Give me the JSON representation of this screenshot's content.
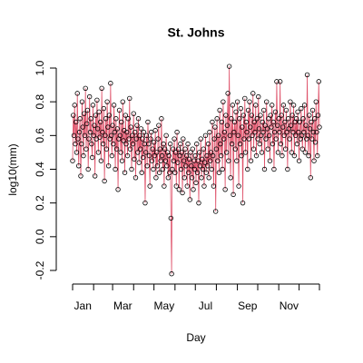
{
  "chart_data": {
    "type": "scatter-line",
    "title": "St. Johns",
    "x_label": "Day",
    "y_label": "log10(mm)",
    "point_color": "#000000",
    "line_color": "#df536b",
    "xlim": [
      1,
      365
    ],
    "ylim": [
      -0.2,
      1.0
    ],
    "xticks": [
      1,
      32,
      60,
      91,
      121,
      152,
      182,
      213,
      244,
      274,
      305,
      335,
      365
    ],
    "xlabels": [
      {
        "value": 16,
        "label": "Jan"
      },
      {
        "value": 75,
        "label": "Mar"
      },
      {
        "value": 136,
        "label": "May"
      },
      {
        "value": 197,
        "label": "Jul"
      },
      {
        "value": 259,
        "label": "Sep"
      },
      {
        "value": 320,
        "label": "Nov"
      }
    ],
    "yticks": [
      -0.2,
      {
        "value": 0,
        "label": "0.0"
      },
      0.2,
      0.4,
      0.6,
      0.8,
      {
        "value": 1,
        "label": "1.0"
      }
    ],
    "x": [
      1,
      2,
      3,
      4,
      5,
      6,
      7,
      8,
      9,
      10,
      11,
      12,
      13,
      14,
      15,
      16,
      17,
      18,
      19,
      20,
      21,
      22,
      23,
      24,
      25,
      26,
      27,
      28,
      29,
      30,
      31,
      32,
      33,
      34,
      35,
      36,
      37,
      38,
      39,
      40,
      41,
      42,
      43,
      44,
      45,
      46,
      47,
      48,
      49,
      50,
      51,
      52,
      53,
      54,
      55,
      56,
      57,
      58,
      59,
      60,
      61,
      62,
      63,
      64,
      65,
      66,
      67,
      68,
      69,
      70,
      71,
      72,
      73,
      74,
      75,
      76,
      77,
      78,
      79,
      80,
      81,
      82,
      83,
      84,
      85,
      86,
      87,
      88,
      89,
      90,
      91,
      92,
      93,
      94,
      95,
      96,
      97,
      98,
      99,
      100,
      101,
      102,
      103,
      104,
      105,
      106,
      107,
      108,
      109,
      110,
      111,
      112,
      113,
      114,
      115,
      116,
      117,
      118,
      119,
      120,
      121,
      122,
      123,
      124,
      125,
      126,
      127,
      128,
      129,
      130,
      131,
      132,
      133,
      134,
      135,
      136,
      137,
      138,
      139,
      140,
      141,
      142,
      143,
      144,
      145,
      146,
      147,
      148,
      149,
      150,
      151,
      152,
      153,
      154,
      155,
      156,
      157,
      158,
      159,
      160,
      161,
      162,
      163,
      164,
      165,
      166,
      167,
      168,
      169,
      170,
      171,
      172,
      173,
      174,
      175,
      176,
      177,
      178,
      179,
      180,
      181,
      182,
      183,
      184,
      185,
      186,
      187,
      188,
      189,
      190,
      191,
      192,
      193,
      194,
      195,
      196,
      197,
      198,
      199,
      200,
      201,
      202,
      203,
      204,
      205,
      206,
      207,
      208,
      209,
      210,
      211,
      212,
      213,
      214,
      215,
      216,
      217,
      218,
      219,
      220,
      221,
      222,
      223,
      224,
      225,
      226,
      227,
      228,
      229,
      230,
      231,
      232,
      233,
      234,
      235,
      236,
      237,
      238,
      239,
      240,
      241,
      242,
      243,
      244,
      245,
      246,
      247,
      248,
      249,
      250,
      251,
      252,
      253,
      254,
      255,
      256,
      257,
      258,
      259,
      260,
      261,
      262,
      263,
      264,
      265,
      266,
      267,
      268,
      269,
      270,
      271,
      272,
      273,
      274,
      275,
      276,
      277,
      278,
      279,
      280,
      281,
      282,
      283,
      284,
      285,
      286,
      287,
      288,
      289,
      290,
      291,
      292,
      293,
      294,
      295,
      296,
      297,
      298,
      299,
      300,
      301,
      302,
      303,
      304,
      305,
      306,
      307,
      308,
      309,
      310,
      311,
      312,
      313,
      314,
      315,
      316,
      317,
      318,
      319,
      320,
      321,
      322,
      323,
      324,
      325,
      326,
      327,
      328,
      329,
      330,
      331,
      332,
      333,
      334,
      335,
      336,
      337,
      338,
      339,
      340,
      341,
      342,
      343,
      344,
      345,
      346,
      347,
      348,
      349,
      350,
      351,
      352,
      353,
      354,
      355,
      356,
      357,
      358,
      359,
      360,
      361,
      362,
      363,
      364,
      365
    ],
    "values": [
      0.45,
      0.72,
      0.6,
      0.78,
      0.55,
      0.68,
      0.5,
      0.85,
      0.58,
      0.42,
      0.62,
      0.7,
      0.36,
      0.55,
      0.8,
      0.65,
      0.48,
      0.73,
      0.6,
      0.88,
      0.52,
      0.67,
      0.75,
      0.4,
      0.58,
      0.83,
      0.62,
      0.7,
      0.55,
      0.47,
      0.78,
      0.6,
      0.66,
      0.36,
      0.72,
      0.58,
      0.81,
      0.64,
      0.5,
      0.74,
      0.59,
      0.68,
      0.45,
      0.88,
      0.62,
      0.55,
      0.76,
      0.33,
      0.6,
      0.7,
      0.52,
      0.8,
      0.65,
      0.42,
      0.72,
      0.58,
      0.91,
      0.6,
      0.48,
      0.66,
      0.55,
      0.78,
      0.62,
      0.4,
      0.7,
      0.52,
      0.64,
      0.28,
      0.58,
      0.75,
      0.6,
      0.5,
      0.68,
      0.45,
      0.8,
      0.57,
      0.63,
      0.38,
      0.72,
      0.55,
      0.62,
      0.48,
      0.7,
      0.58,
      0.82,
      0.52,
      0.65,
      0.4,
      0.6,
      0.55,
      0.73,
      0.46,
      0.62,
      0.35,
      0.58,
      0.66,
      0.5,
      0.7,
      0.44,
      0.6,
      0.52,
      0.64,
      0.38,
      0.58,
      0.47,
      0.62,
      0.55,
      0.2,
      0.5,
      0.6,
      0.42,
      0.68,
      0.55,
      0.48,
      0.3,
      0.58,
      0.62,
      0.45,
      0.52,
      0.4,
      0.56,
      0.48,
      0.63,
      0.35,
      0.5,
      0.42,
      0.58,
      0.66,
      0.38,
      0.52,
      0.45,
      0.7,
      0.48,
      0.4,
      0.55,
      0.3,
      0.52,
      0.45,
      0.6,
      0.42,
      0.5,
      0.35,
      0.48,
      0.38,
      0.55,
      0.11,
      -0.22,
      0.4,
      0.52,
      0.45,
      0.58,
      0.38,
      0.5,
      0.3,
      0.62,
      0.44,
      0.52,
      0.28,
      0.48,
      0.55,
      0.4,
      0.5,
      0.26,
      0.58,
      0.45,
      0.35,
      0.52,
      0.42,
      0.48,
      0.3,
      0.55,
      0.38,
      0.46,
      0.22,
      0.5,
      0.42,
      0.35,
      0.52,
      0.28,
      0.45,
      0.4,
      0.48,
      0.32,
      0.55,
      0.38,
      0.45,
      0.2,
      0.5,
      0.42,
      0.58,
      0.35,
      0.46,
      0.4,
      0.52,
      0.3,
      0.44,
      0.6,
      0.38,
      0.48,
      0.42,
      0.55,
      0.35,
      0.62,
      0.45,
      0.5,
      0.4,
      0.68,
      0.48,
      0.3,
      0.58,
      0.65,
      0.15,
      0.52,
      0.7,
      0.45,
      0.6,
      0.38,
      0.75,
      0.55,
      0.48,
      0.68,
      0.4,
      0.8,
      0.58,
      0.62,
      0.28,
      0.72,
      0.5,
      0.66,
      0.85,
      0.45,
      1.01,
      0.6,
      0.35,
      0.7,
      0.55,
      0.78,
      0.25,
      0.62,
      0.68,
      0.52,
      0.74,
      0.45,
      0.8,
      0.6,
      0.3,
      0.7,
      0.55,
      0.76,
      0.48,
      0.65,
      0.2,
      0.72,
      0.58,
      0.82,
      0.5,
      0.68,
      0.62,
      0.4,
      0.75,
      0.58,
      0.8,
      0.65,
      0.45,
      0.72,
      0.6,
      0.85,
      0.52,
      0.68,
      0.62,
      0.78,
      0.48,
      0.7,
      0.58,
      0.83,
      0.64,
      0.55,
      0.72,
      0.6,
      0.5,
      0.68,
      0.62,
      0.75,
      0.4,
      0.66,
      0.58,
      0.8,
      0.64,
      0.52,
      0.7,
      0.6,
      0.45,
      0.72,
      0.65,
      0.78,
      0.55,
      0.68,
      0.4,
      0.62,
      0.74,
      0.58,
      0.92,
      0.66,
      0.5,
      0.7,
      0.62,
      0.92,
      0.55,
      0.72,
      0.48,
      0.65,
      0.78,
      0.6,
      0.68,
      0.52,
      0.75,
      0.62,
      0.4,
      0.7,
      0.64,
      0.58,
      0.8,
      0.66,
      0.5,
      0.72,
      0.62,
      0.78,
      0.48,
      0.68,
      0.6,
      0.7,
      0.55,
      0.74,
      0.62,
      0.45,
      0.68,
      0.58,
      0.76,
      0.6,
      0.52,
      0.7,
      0.62,
      0.78,
      0.5,
      0.66,
      0.58,
      0.96,
      0.6,
      0.48,
      0.72,
      0.64,
      0.35,
      0.68,
      0.58,
      0.75,
      0.62,
      0.45,
      0.7,
      0.56,
      0.8,
      0.62,
      0.48,
      0.72,
      0.92,
      0.65
    ]
  }
}
